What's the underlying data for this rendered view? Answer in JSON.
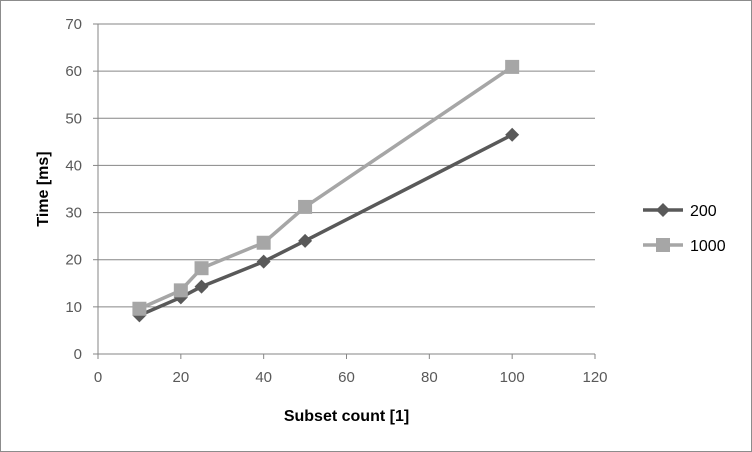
{
  "chart_data": {
    "type": "line",
    "title": "",
    "xlabel": "Subset count [1]",
    "ylabel": "Time [ms]",
    "xlim": [
      0,
      120
    ],
    "ylim": [
      0,
      70
    ],
    "xticks": [
      0,
      20,
      40,
      60,
      80,
      100,
      120
    ],
    "yticks": [
      0,
      10,
      20,
      30,
      40,
      50,
      60,
      70
    ],
    "grid": "horizontal",
    "legend_position": "right",
    "series": [
      {
        "name": "200",
        "color": "#595959",
        "marker": "diamond",
        "x": [
          10,
          20,
          25,
          40,
          50,
          100
        ],
        "y": [
          8.2,
          12.0,
          14.3,
          19.6,
          24.0,
          46.5
        ]
      },
      {
        "name": "1000",
        "color": "#a6a6a6",
        "marker": "square",
        "x": [
          10,
          20,
          25,
          40,
          50,
          100
        ],
        "y": [
          9.6,
          13.5,
          18.2,
          23.6,
          31.2,
          60.9
        ]
      }
    ]
  }
}
